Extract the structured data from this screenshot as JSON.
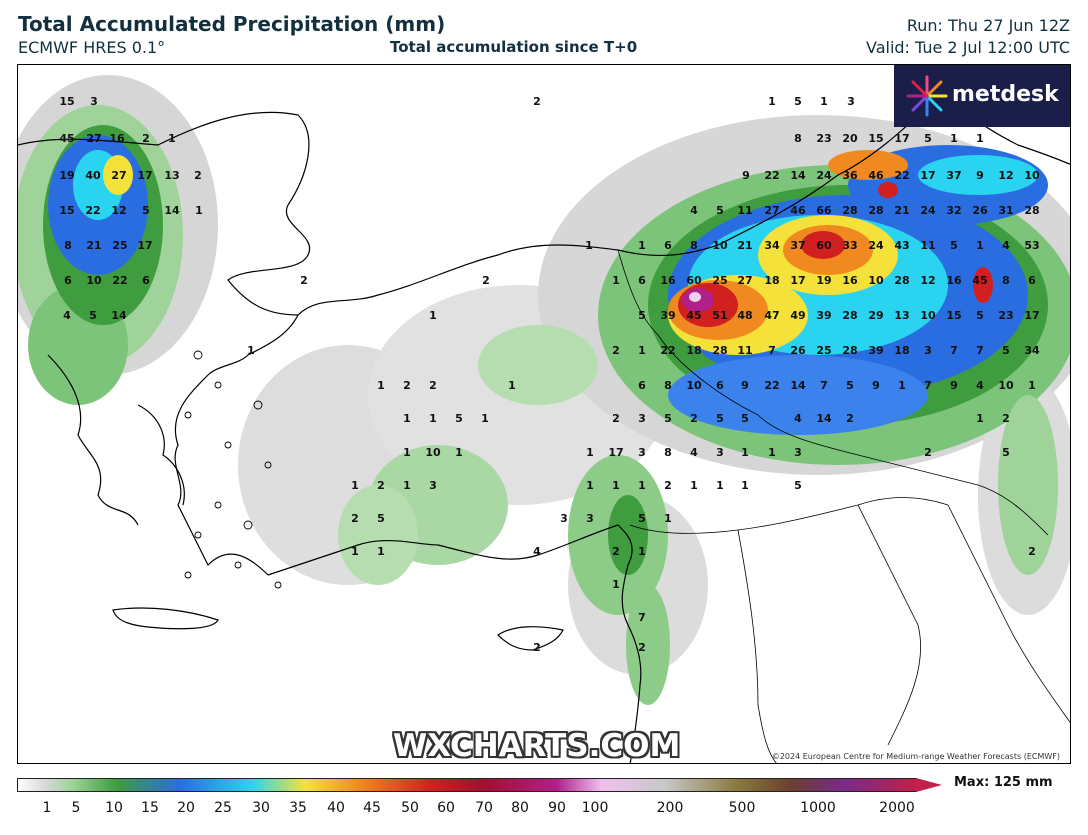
{
  "header": {
    "title": "Total Accumulated Precipitation (mm)",
    "model": "ECMWF HRES 0.1°",
    "subtitle": "Total accumulation since T+0",
    "run": "Run: Thu 27 Jun 12Z",
    "valid": "Valid: Tue 2 Jul 12:00 UTC"
  },
  "branding": {
    "logo_text": "metdesk",
    "watermark": "WXCHARTS.COM",
    "copyright": "©2024 European Centre for Medium-range Weather Forecasts (ECMWF)"
  },
  "legend": {
    "ticks": [
      "1",
      "5",
      "10",
      "15",
      "20",
      "25",
      "30",
      "35",
      "40",
      "45",
      "50",
      "60",
      "70",
      "80",
      "90",
      "100",
      "200",
      "500",
      "1000",
      "2000"
    ],
    "max_label": "Max: 125 mm"
  },
  "colors": {
    "light_green": "#9fd39a",
    "green": "#3f9c3f",
    "blue": "#2a6de0",
    "cyan": "#2ad4f0",
    "yellow": "#f4e23a",
    "orange": "#f08a20",
    "red": "#d02020",
    "magenta": "#b0208a",
    "gray": "#c8c8c8"
  },
  "map_values": [
    {
      "label": "15"
    },
    {
      "label": "3"
    },
    {
      "label": "45"
    },
    {
      "label": "27"
    },
    {
      "label": "16"
    },
    {
      "label": "2"
    },
    {
      "label": "1"
    },
    {
      "label": "19"
    },
    {
      "label": "40"
    },
    {
      "label": "27"
    },
    {
      "label": "17"
    },
    {
      "label": "13"
    },
    {
      "label": "2"
    },
    {
      "label": "15"
    },
    {
      "label": "22"
    },
    {
      "label": "12"
    },
    {
      "label": "5"
    },
    {
      "label": "14"
    },
    {
      "label": "1"
    },
    {
      "label": "8"
    },
    {
      "label": "21"
    },
    {
      "label": "25"
    },
    {
      "label": "17"
    },
    {
      "label": "6"
    },
    {
      "label": "10"
    },
    {
      "label": "22"
    },
    {
      "label": "6"
    },
    {
      "label": "4"
    },
    {
      "label": "5"
    },
    {
      "label": "14"
    },
    {
      "label": "2"
    },
    {
      "label": "1"
    },
    {
      "label": "5"
    },
    {
      "label": "1"
    },
    {
      "label": "3"
    },
    {
      "label": "8"
    },
    {
      "label": "23"
    },
    {
      "label": "20"
    },
    {
      "label": "15"
    },
    {
      "label": "17"
    },
    {
      "label": "5"
    },
    {
      "label": "1"
    },
    {
      "label": "1"
    },
    {
      "label": "9"
    },
    {
      "label": "22"
    },
    {
      "label": "14"
    },
    {
      "label": "24"
    },
    {
      "label": "36"
    },
    {
      "label": "46"
    },
    {
      "label": "22"
    },
    {
      "label": "17"
    },
    {
      "label": "37"
    },
    {
      "label": "9"
    },
    {
      "label": "12"
    },
    {
      "label": "10"
    },
    {
      "label": "4"
    },
    {
      "label": "5"
    },
    {
      "label": "11"
    },
    {
      "label": "27"
    },
    {
      "label": "46"
    },
    {
      "label": "66"
    },
    {
      "label": "28"
    },
    {
      "label": "28"
    },
    {
      "label": "21"
    },
    {
      "label": "24"
    },
    {
      "label": "32"
    },
    {
      "label": "26"
    },
    {
      "label": "31"
    },
    {
      "label": "28"
    },
    {
      "label": "1"
    },
    {
      "label": "1"
    },
    {
      "label": "6"
    },
    {
      "label": "8"
    },
    {
      "label": "10"
    },
    {
      "label": "21"
    },
    {
      "label": "34"
    },
    {
      "label": "37"
    },
    {
      "label": "60"
    },
    {
      "label": "33"
    },
    {
      "label": "24"
    },
    {
      "label": "43"
    },
    {
      "label": "11"
    },
    {
      "label": "5"
    },
    {
      "label": "1"
    },
    {
      "label": "4"
    },
    {
      "label": "53"
    },
    {
      "label": "2"
    },
    {
      "label": "2"
    },
    {
      "label": "1"
    },
    {
      "label": "6"
    },
    {
      "label": "16"
    },
    {
      "label": "60"
    },
    {
      "label": "25"
    },
    {
      "label": "27"
    },
    {
      "label": "18"
    },
    {
      "label": "17"
    },
    {
      "label": "19"
    },
    {
      "label": "16"
    },
    {
      "label": "10"
    },
    {
      "label": "28"
    },
    {
      "label": "12"
    },
    {
      "label": "16"
    },
    {
      "label": "45"
    },
    {
      "label": "8"
    },
    {
      "label": "6"
    },
    {
      "label": "1"
    },
    {
      "label": "5"
    },
    {
      "label": "39"
    },
    {
      "label": "45"
    },
    {
      "label": "51"
    },
    {
      "label": "48"
    },
    {
      "label": "47"
    },
    {
      "label": "49"
    },
    {
      "label": "39"
    },
    {
      "label": "28"
    },
    {
      "label": "29"
    },
    {
      "label": "13"
    },
    {
      "label": "10"
    },
    {
      "label": "15"
    },
    {
      "label": "5"
    },
    {
      "label": "23"
    },
    {
      "label": "17"
    },
    {
      "label": "1"
    },
    {
      "label": "2"
    },
    {
      "label": "1"
    },
    {
      "label": "22"
    },
    {
      "label": "18"
    },
    {
      "label": "28"
    },
    {
      "label": "11"
    },
    {
      "label": "7"
    },
    {
      "label": "26"
    },
    {
      "label": "25"
    },
    {
      "label": "28"
    },
    {
      "label": "39"
    },
    {
      "label": "18"
    },
    {
      "label": "3"
    },
    {
      "label": "7"
    },
    {
      "label": "7"
    },
    {
      "label": "5"
    },
    {
      "label": "34"
    },
    {
      "label": "1"
    },
    {
      "label": "2"
    },
    {
      "label": "2"
    },
    {
      "label": "1"
    },
    {
      "label": "6"
    },
    {
      "label": "8"
    },
    {
      "label": "10"
    },
    {
      "label": "6"
    },
    {
      "label": "9"
    },
    {
      "label": "22"
    },
    {
      "label": "14"
    },
    {
      "label": "7"
    },
    {
      "label": "5"
    },
    {
      "label": "9"
    },
    {
      "label": "1"
    },
    {
      "label": "7"
    },
    {
      "label": "9"
    },
    {
      "label": "4"
    },
    {
      "label": "10"
    },
    {
      "label": "1"
    },
    {
      "label": "1"
    },
    {
      "label": "1"
    },
    {
      "label": "5"
    },
    {
      "label": "1"
    },
    {
      "label": "2"
    },
    {
      "label": "3"
    },
    {
      "label": "5"
    },
    {
      "label": "2"
    },
    {
      "label": "5"
    },
    {
      "label": "5"
    },
    {
      "label": "4"
    },
    {
      "label": "14"
    },
    {
      "label": "2"
    },
    {
      "label": "1"
    },
    {
      "label": "2"
    },
    {
      "label": "1"
    },
    {
      "label": "10"
    },
    {
      "label": "1"
    },
    {
      "label": "1"
    },
    {
      "label": "17"
    },
    {
      "label": "3"
    },
    {
      "label": "8"
    },
    {
      "label": "4"
    },
    {
      "label": "3"
    },
    {
      "label": "1"
    },
    {
      "label": "1"
    },
    {
      "label": "3"
    },
    {
      "label": "2"
    },
    {
      "label": "5"
    },
    {
      "label": "1"
    },
    {
      "label": "2"
    },
    {
      "label": "1"
    },
    {
      "label": "3"
    },
    {
      "label": "1"
    },
    {
      "label": "1"
    },
    {
      "label": "1"
    },
    {
      "label": "2"
    },
    {
      "label": "1"
    },
    {
      "label": "1"
    },
    {
      "label": "1"
    },
    {
      "label": "5"
    },
    {
      "label": "2"
    },
    {
      "label": "5"
    },
    {
      "label": "3"
    },
    {
      "label": "3"
    },
    {
      "label": "5"
    },
    {
      "label": "1"
    },
    {
      "label": "1"
    },
    {
      "label": "1"
    },
    {
      "label": "4"
    },
    {
      "label": "2"
    },
    {
      "label": "1"
    },
    {
      "label": "2"
    },
    {
      "label": "1"
    },
    {
      "label": "7"
    },
    {
      "label": "2"
    },
    {
      "label": "2"
    }
  ]
}
